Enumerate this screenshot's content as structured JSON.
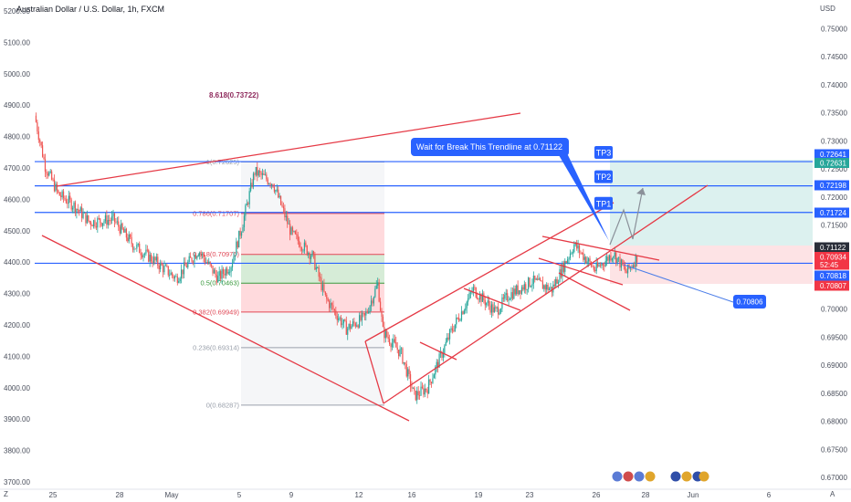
{
  "header": {
    "title": "Australian Dollar / U.S. Dollar, 1h, FXCM",
    "currency": "USD"
  },
  "bottom": {
    "left_label": "Z",
    "right_label": "A"
  },
  "chart_data": {
    "type": "candlestick",
    "left_axis": {
      "ticks": [
        "5200.00",
        "5100.00",
        "5000.00",
        "4900.00",
        "4800.00",
        "4700.00",
        "4600.00",
        "4500.00",
        "4400.00",
        "4300.00",
        "4200.00",
        "4100.00",
        "4000.00",
        "3900.00",
        "3800.00",
        "3700.00"
      ]
    },
    "right_axis": {
      "ticks": [
        "0.75000",
        "0.74500",
        "0.74000",
        "0.73500",
        "0.73000",
        "0.72500",
        "0.72000",
        "0.71500",
        "0.71000",
        "0.70500",
        "0.70000",
        "0.69500",
        "0.69000",
        "0.68500",
        "0.68000",
        "0.67500",
        "0.67000"
      ]
    },
    "x_axis": {
      "ticks": [
        "25",
        "28",
        "May",
        "5",
        "9",
        "12",
        "16",
        "19",
        "23",
        "26",
        "28",
        "Jun",
        "6"
      ]
    },
    "ylim": [
      0.6695,
      0.7537
    ],
    "price_badges": [
      {
        "value": "0.72641",
        "color": "#2962ff"
      },
      {
        "value": "0.72631",
        "color": "#26a69a"
      },
      {
        "value": "0.72198",
        "color": "#2962ff"
      },
      {
        "value": "0.71724",
        "color": "#2962ff"
      },
      {
        "value": "0.71122",
        "color": "#2a2e39"
      },
      {
        "value": "0.70934",
        "color": "#f23645"
      },
      {
        "value": "52:45",
        "color": "#f23645"
      },
      {
        "value": "0.70818",
        "color": "#2962ff"
      },
      {
        "value": "0.70807",
        "color": "#f23645"
      }
    ],
    "horizontal_levels": [
      0.72631,
      0.72198,
      0.71724,
      0.70818
    ],
    "targets": [
      {
        "label": "TP3",
        "value": 0.72631
      },
      {
        "label": "TP2",
        "value": 0.72198
      },
      {
        "label": "TP1",
        "value": 0.71724
      }
    ],
    "fibonacci": {
      "extension_label": "8.618(0.73722)",
      "levels": [
        {
          "label": "1(0.72625)",
          "value": 0.72625,
          "color": "#9aa0ab"
        },
        {
          "label": "0.786(0.71707)",
          "value": 0.71707,
          "color": "#e04856"
        },
        {
          "label": "0.618(0.70976)",
          "value": 0.70976,
          "color": "#e04856"
        },
        {
          "label": "0.5(0.70463)",
          "value": 0.70463,
          "color": "#3a9a3e"
        },
        {
          "label": "0.382(0.69949)",
          "value": 0.69949,
          "color": "#e04856"
        },
        {
          "label": "0.236(0.69314)",
          "value": 0.69314,
          "color": "#9aa0ab"
        },
        {
          "label": "0(0.68287)",
          "value": 0.68287,
          "color": "#9aa0ab"
        }
      ]
    },
    "annotations": {
      "callout": "Wait for Break This Trendline at 0.71122",
      "target_marker": "0.70806"
    },
    "pivots": [
      {
        "t": 0,
        "p": 0.7345
      },
      {
        "t": 8,
        "p": 0.7255
      },
      {
        "t": 18,
        "p": 0.7205
      },
      {
        "t": 30,
        "p": 0.7185
      },
      {
        "t": 42,
        "p": 0.7155
      },
      {
        "t": 60,
        "p": 0.716
      },
      {
        "t": 75,
        "p": 0.7115
      },
      {
        "t": 92,
        "p": 0.7085
      },
      {
        "t": 108,
        "p": 0.7055
      },
      {
        "t": 125,
        "p": 0.7105
      },
      {
        "t": 140,
        "p": 0.7055
      },
      {
        "t": 150,
        "p": 0.708
      },
      {
        "t": 158,
        "p": 0.7145
      },
      {
        "t": 168,
        "p": 0.7245
      },
      {
        "t": 182,
        "p": 0.7225
      },
      {
        "t": 196,
        "p": 0.7135
      },
      {
        "t": 212,
        "p": 0.7095
      },
      {
        "t": 222,
        "p": 0.702
      },
      {
        "t": 238,
        "p": 0.6965
      },
      {
        "t": 252,
        "p": 0.6985
      },
      {
        "t": 262,
        "p": 0.7045
      },
      {
        "t": 266,
        "p": 0.696
      },
      {
        "t": 280,
        "p": 0.692
      },
      {
        "t": 290,
        "p": 0.6845
      },
      {
        "t": 300,
        "p": 0.686
      },
      {
        "t": 318,
        "p": 0.696
      },
      {
        "t": 335,
        "p": 0.7035
      },
      {
        "t": 352,
        "p": 0.6995
      },
      {
        "t": 362,
        "p": 0.7025
      },
      {
        "t": 380,
        "p": 0.705
      },
      {
        "t": 395,
        "p": 0.7035
      },
      {
        "t": 412,
        "p": 0.7115
      },
      {
        "t": 428,
        "p": 0.707
      },
      {
        "t": 442,
        "p": 0.71
      },
      {
        "t": 452,
        "p": 0.7065
      },
      {
        "t": 460,
        "p": 0.7093
      }
    ]
  }
}
